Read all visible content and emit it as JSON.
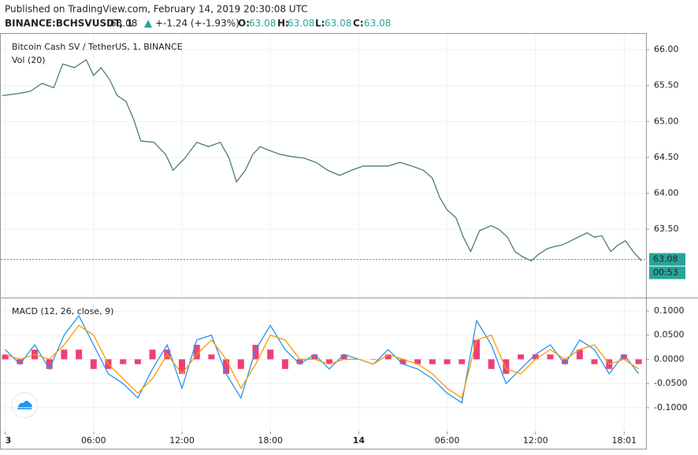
{
  "header": {
    "published": "Published on TradingView.com, February 14, 2019 20:30:08 UTC",
    "symbol": "BINANCE:BCHSVUSDT, 1",
    "last": 63.08,
    "change": "+-1.24 (+-1.93%)",
    "open_label": "O:",
    "open": 63.08,
    "high_label": "H:",
    "high": 63.08,
    "low_label": "L:",
    "low": 63.08,
    "close_label": "C:",
    "close": 63.08
  },
  "chart_data": [
    {
      "type": "line",
      "title": "Bitcoin Cash SV / TetherUS, 1, BINANCE",
      "subtitle": "Vol (20)",
      "xlim": [
        -0.3,
        43.5
      ],
      "ylim": [
        62.56,
        66.22
      ],
      "yticks": [
        {
          "value": 63.5,
          "label": "63.50"
        },
        {
          "value": 64,
          "label": "64.00"
        },
        {
          "value": 64.5,
          "label": "64.50"
        },
        {
          "value": 65,
          "label": "65.00"
        },
        {
          "value": 65.5,
          "label": "65.50"
        },
        {
          "value": 66,
          "label": "66.00"
        }
      ],
      "grid": true,
      "last_price": {
        "value": 63.08,
        "label": "63.08",
        "countdown": "00:53",
        "color": "#26a69a"
      },
      "series": [
        {
          "name": "BCHSVUSDT",
          "color": "#4d7d6e",
          "x": [
            -0.2,
            0.9,
            1.7,
            2.5,
            3.3,
            3.9,
            4.7,
            5.5,
            6.0,
            6.5,
            7.1,
            7.6,
            8.2,
            8.7,
            9.2,
            10.1,
            10.9,
            11.4,
            12.2,
            13.0,
            13.8,
            14.6,
            15.2,
            15.7,
            16.3,
            16.8,
            17.3,
            17.9,
            18.7,
            19.5,
            20.3,
            21.1,
            21.9,
            22.7,
            23.5,
            24.3,
            25.1,
            26.0,
            26.8,
            27.6,
            28.4,
            29.0,
            29.5,
            30.0,
            30.6,
            31.1,
            31.6,
            32.2,
            33.0,
            33.5,
            34.1,
            34.6,
            35.1,
            35.7,
            36.2,
            36.8,
            37.3,
            37.8,
            38.4,
            38.9,
            39.5,
            40.0,
            40.5,
            41.1,
            41.6,
            42.1,
            42.7,
            43.2
          ],
          "values": [
            65.36,
            65.39,
            65.42,
            65.53,
            65.47,
            65.8,
            65.75,
            65.86,
            65.64,
            65.75,
            65.58,
            65.36,
            65.28,
            65.04,
            64.73,
            64.71,
            64.54,
            64.32,
            64.49,
            64.71,
            64.65,
            64.71,
            64.49,
            64.16,
            64.32,
            64.54,
            64.65,
            64.6,
            64.54,
            64.51,
            64.49,
            64.43,
            64.32,
            64.25,
            64.32,
            64.38,
            64.38,
            64.38,
            64.43,
            64.38,
            64.32,
            64.21,
            63.94,
            63.77,
            63.66,
            63.39,
            63.19,
            63.48,
            63.55,
            63.5,
            63.39,
            63.19,
            63.12,
            63.06,
            63.15,
            63.23,
            63.26,
            63.28,
            63.34,
            63.39,
            63.45,
            63.39,
            63.41,
            63.19,
            63.28,
            63.34,
            63.17,
            63.06
          ]
        }
      ]
    },
    {
      "type": "macd",
      "title": "MACD (12, 26, close, 9)",
      "xlim": [
        -0.3,
        43.5
      ],
      "ylim": [
        -0.149,
        0.126
      ],
      "xticks": [
        {
          "value": 0,
          "label": "3"
        },
        {
          "value": 6,
          "label": "06:00"
        },
        {
          "value": 12,
          "label": "12:00"
        },
        {
          "value": 18,
          "label": "18:00"
        },
        {
          "value": 24,
          "label": "14"
        },
        {
          "value": 30,
          "label": "06:00"
        },
        {
          "value": 36,
          "label": "12:00"
        },
        {
          "value": 42.02,
          "label": "18:01"
        }
      ],
      "yticks": [
        {
          "value": -0.1,
          "label": "-0.1000"
        },
        {
          "value": -0.05,
          "label": "-0.0500"
        },
        {
          "value": 0,
          "label": "0.0000"
        },
        {
          "value": 0.05,
          "label": "0.0500"
        },
        {
          "value": 0.1,
          "label": "0.1000"
        }
      ],
      "grid": true,
      "x": [
        0,
        1,
        2,
        3,
        4,
        5,
        6,
        7,
        8,
        9,
        10,
        11,
        12,
        13,
        14,
        15,
        16,
        17,
        18,
        19,
        20,
        21,
        22,
        23,
        24,
        25,
        26,
        27,
        28,
        29,
        30,
        31,
        32,
        33,
        34,
        35,
        36,
        37,
        38,
        39,
        40,
        41,
        42,
        43
      ],
      "series": [
        {
          "name": "Histogram",
          "color": "#e91e63",
          "kind": "histogram",
          "values": [
            0.01,
            -0.01,
            0.02,
            -0.02,
            0.02,
            0.02,
            -0.02,
            -0.02,
            -0.01,
            -0.01,
            0.02,
            0.02,
            -0.03,
            0.03,
            0.01,
            -0.03,
            -0.02,
            0.03,
            0.02,
            -0.02,
            -0.01,
            0.01,
            -0.01,
            0.01,
            0.0,
            0.0,
            0.01,
            -0.01,
            -0.01,
            -0.01,
            -0.01,
            -0.01,
            0.04,
            -0.02,
            -0.03,
            0.01,
            0.01,
            0.01,
            -0.01,
            0.02,
            -0.01,
            -0.02,
            0.01,
            -0.01
          ]
        },
        {
          "name": "MACD",
          "color": "#2196f3",
          "kind": "line",
          "values": [
            0.02,
            -0.01,
            0.03,
            -0.02,
            0.05,
            0.09,
            0.03,
            -0.03,
            -0.05,
            -0.08,
            -0.02,
            0.03,
            -0.06,
            0.04,
            0.05,
            -0.03,
            -0.08,
            0.02,
            0.07,
            0.02,
            -0.01,
            0.01,
            -0.02,
            0.01,
            0.0,
            -0.01,
            0.02,
            -0.01,
            -0.02,
            -0.04,
            -0.07,
            -0.09,
            0.08,
            0.03,
            -0.05,
            -0.02,
            0.01,
            0.03,
            -0.01,
            0.04,
            0.02,
            -0.03,
            0.01,
            -0.03
          ]
        },
        {
          "name": "Signal",
          "color": "#ff9800",
          "kind": "line",
          "values": [
            0.01,
            0.0,
            0.01,
            0.0,
            0.03,
            0.07,
            0.05,
            -0.01,
            -0.04,
            -0.07,
            -0.04,
            0.01,
            -0.03,
            0.01,
            0.04,
            0.0,
            -0.06,
            -0.01,
            0.05,
            0.04,
            0.0,
            0.0,
            -0.01,
            0.0,
            0.0,
            -0.01,
            0.01,
            0.0,
            -0.01,
            -0.03,
            -0.06,
            -0.08,
            0.04,
            0.05,
            -0.02,
            -0.03,
            0.0,
            0.02,
            0.0,
            0.02,
            0.03,
            -0.01,
            0.0,
            -0.02
          ]
        }
      ]
    }
  ]
}
